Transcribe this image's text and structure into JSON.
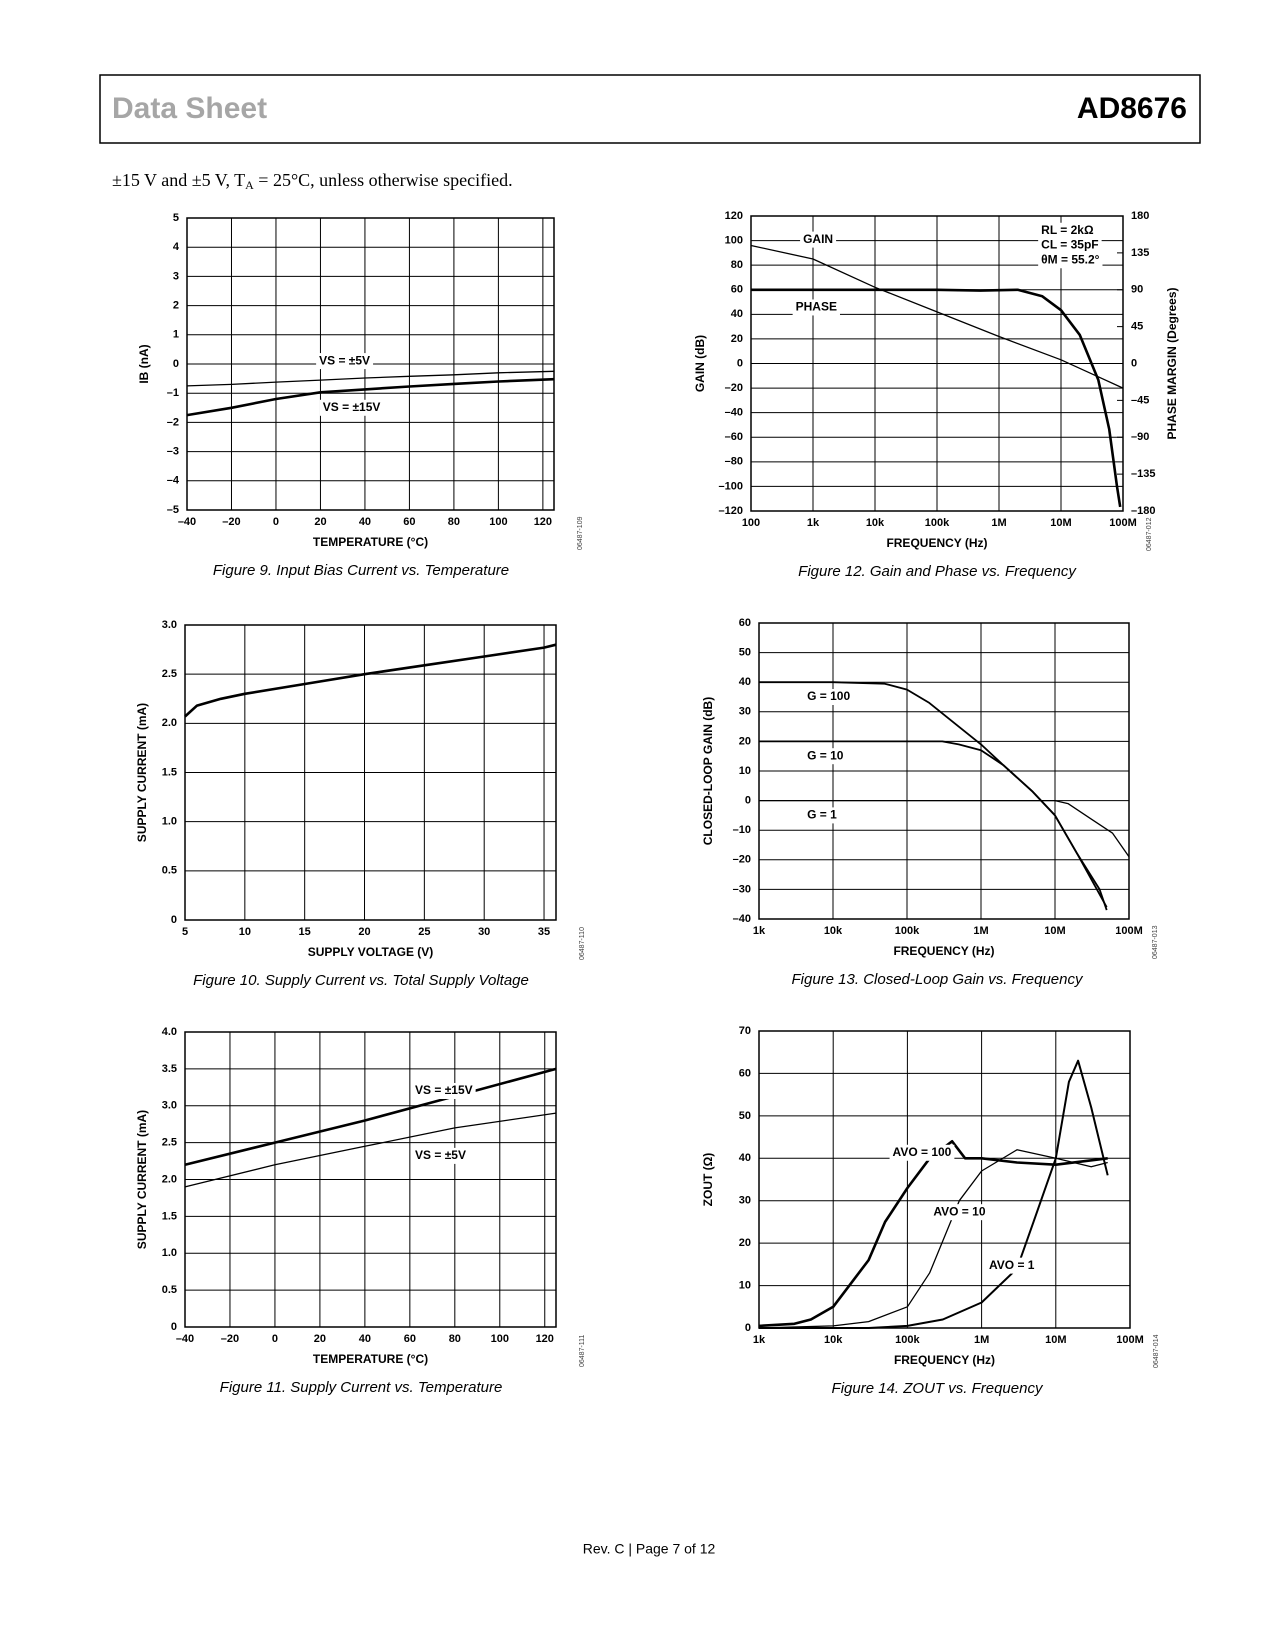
{
  "header": {
    "left": "Data Sheet",
    "right": "AD8676"
  },
  "conditions": [
    "±15 V and ±5 V, T",
    "A",
    " = 25°C, unless otherwise specified."
  ],
  "footer": "Rev. C | Page 7 of 12",
  "chart_data": [
    {
      "type": "line",
      "caption": "Figure 9. Input Bias Current vs. Temperature",
      "code": "06487-109",
      "xlabel": "TEMPERATURE (°C)",
      "ylabel": "IB (nA)",
      "xlim": [
        -40,
        125
      ],
      "ylim": [
        -5,
        5
      ],
      "xticks": [
        {
          "value": -40,
          "label": "–40"
        },
        {
          "value": -20,
          "label": "–20"
        },
        0,
        20,
        40,
        60,
        80,
        100,
        120
      ],
      "yticks": [
        {
          "value": -5,
          "label": "–5"
        },
        {
          "value": -4,
          "label": "–4"
        },
        {
          "value": -3,
          "label": "–3"
        },
        {
          "value": -2,
          "label": "–2"
        },
        {
          "value": -1,
          "label": "–1"
        },
        0,
        1,
        2,
        3,
        4,
        5
      ],
      "x": [
        -40,
        -20,
        0,
        20,
        40,
        60,
        80,
        100,
        125
      ],
      "series": [
        {
          "name": "VS = ±5V",
          "color": "#000000",
          "linewidth": 1.3,
          "values": [
            -0.75,
            -0.7,
            -0.62,
            -0.55,
            -0.48,
            -0.42,
            -0.37,
            -0.3,
            -0.25
          ]
        },
        {
          "name": "VS = ±15V",
          "color": "#000000",
          "linewidth": 2.6,
          "values": [
            -1.75,
            -1.5,
            -1.2,
            -0.97,
            -0.87,
            -0.77,
            -0.68,
            -0.6,
            -0.52
          ]
        }
      ],
      "grid": true
    },
    {
      "type": "line",
      "caption": "Figure 12. Gain and Phase vs. Frequency",
      "code": "06487-012",
      "xlabel": "FREQUENCY (Hz)",
      "ylabel": "GAIN (dB)",
      "y2label": "PHASE MARGIN (Degrees)",
      "xscale": "log",
      "xlim": [
        100,
        100000000
      ],
      "ylim": [
        -120,
        120
      ],
      "y2lim": [
        -180,
        180
      ],
      "xticks": [
        100,
        {
          "value": 1000,
          "label": "1k"
        },
        {
          "value": 10000,
          "label": "10k"
        },
        {
          "value": 100000,
          "label": "100k"
        },
        {
          "value": 1000000,
          "label": "1M"
        },
        {
          "value": 10000000,
          "label": "10M"
        },
        {
          "value": 100000000,
          "label": "100M"
        }
      ],
      "yticks": [
        {
          "value": -120,
          "label": "–120"
        },
        {
          "value": -100,
          "label": "–100"
        },
        {
          "value": -80,
          "label": "–80"
        },
        {
          "value": -60,
          "label": "–60"
        },
        {
          "value": -40,
          "label": "–40"
        },
        {
          "value": -20,
          "label": "–20"
        },
        0,
        20,
        40,
        60,
        80,
        100,
        120
      ],
      "y2ticks": [
        {
          "value": -180,
          "label": "–180"
        },
        {
          "value": -135,
          "label": "–135"
        },
        {
          "value": -90,
          "label": "–90"
        },
        {
          "value": -45,
          "label": "–45"
        },
        0,
        45,
        90,
        135,
        180
      ],
      "series": [
        {
          "name": "GAIN",
          "color": "#000000",
          "linewidth": 1.3,
          "x": [
            100,
            1000,
            10000,
            100000,
            1000000,
            10000000,
            30000000,
            100000000
          ],
          "values": [
            96,
            85,
            62,
            42,
            22,
            3,
            -8,
            -20
          ]
        },
        {
          "name": "PHASE",
          "color": "#000000",
          "linewidth": 2.6,
          "axis": "y2",
          "x": [
            100,
            1000,
            10000,
            100000,
            500000,
            2000000,
            5000000,
            10000000,
            20000000,
            40000000,
            60000000,
            80000000,
            90000000
          ],
          "values": [
            90,
            90,
            90,
            90,
            89,
            90,
            82,
            65,
            35,
            -20,
            -80,
            -150,
            -175
          ]
        }
      ],
      "annotations": [
        "RL = 2kΩ",
        "CL = 35pF",
        "θM = 55.2°"
      ],
      "grid": true
    },
    {
      "type": "line",
      "caption": "Figure 10. Supply Current vs. Total Supply Voltage",
      "code": "06487-110",
      "xlabel": "SUPPLY VOLTAGE (V)",
      "ylabel": "SUPPLY CURRENT (mA)",
      "xlim": [
        5,
        36
      ],
      "ylim": [
        0,
        3
      ],
      "xticks": [
        5,
        10,
        15,
        20,
        25,
        30,
        35
      ],
      "yticks": [
        0,
        0.5,
        {
          "value": 1,
          "label": "1.0"
        },
        1.5,
        {
          "value": 2,
          "label": "2.0"
        },
        2.5,
        {
          "value": 3,
          "label": "3.0"
        }
      ],
      "x": [
        5,
        6,
        8,
        10,
        15,
        20,
        25,
        30,
        35,
        36
      ],
      "series": [
        {
          "color": "#000000",
          "linewidth": 2.6,
          "values": [
            2.07,
            2.18,
            2.25,
            2.3,
            2.4,
            2.5,
            2.59,
            2.68,
            2.77,
            2.8
          ]
        }
      ],
      "grid": true
    },
    {
      "type": "line",
      "caption": "Figure 13. Closed-Loop Gain vs. Frequency",
      "code": "06487-013",
      "xlabel": "FREQUENCY (Hz)",
      "ylabel": "CLOSED-LOOP GAIN (dB)",
      "xscale": "log",
      "xlim": [
        1000,
        100000000
      ],
      "ylim": [
        -40,
        60
      ],
      "xticks": [
        {
          "value": 1000,
          "label": "1k"
        },
        {
          "value": 10000,
          "label": "10k"
        },
        {
          "value": 100000,
          "label": "100k"
        },
        {
          "value": 1000000,
          "label": "1M"
        },
        {
          "value": 10000000,
          "label": "10M"
        },
        {
          "value": 100000000,
          "label": "100M"
        }
      ],
      "yticks": [
        {
          "value": -40,
          "label": "–40"
        },
        {
          "value": -30,
          "label": "–30"
        },
        {
          "value": -20,
          "label": "–20"
        },
        {
          "value": -10,
          "label": "–10"
        },
        0,
        10,
        20,
        30,
        40,
        50,
        60
      ],
      "series": [
        {
          "name": "G = 100",
          "color": "#000000",
          "linewidth": 1.8,
          "x": [
            1000,
            10000,
            50000,
            100000,
            200000,
            500000,
            1000000,
            2000000,
            5000000,
            10000000,
            20000000,
            50000000
          ],
          "values": [
            40,
            40,
            39.5,
            37.5,
            33,
            25,
            19,
            12,
            3,
            -5,
            -18,
            -36
          ]
        },
        {
          "name": "G = 10",
          "color": "#000000",
          "linewidth": 1.8,
          "x": [
            1000,
            10000,
            100000,
            300000,
            500000,
            1000000,
            2000000,
            5000000,
            10000000,
            20000000,
            40000000,
            50000000
          ],
          "values": [
            20,
            20,
            20,
            20,
            19,
            17,
            12,
            3,
            -5,
            -18,
            -30,
            -37
          ]
        },
        {
          "name": "G = 1",
          "color": "#000000",
          "linewidth": 1.3,
          "x": [
            1000,
            100000,
            1000000,
            10000000,
            15000000,
            30000000,
            60000000,
            100000000
          ],
          "values": [
            0,
            0,
            0,
            0,
            -1,
            -6,
            -11,
            -19
          ]
        }
      ],
      "grid": true
    },
    {
      "type": "line",
      "caption": "Figure 11. Supply Current vs. Temperature",
      "code": "06487-111",
      "xlabel": "TEMPERATURE (°C)",
      "ylabel": "SUPPLY CURRENT (mA)",
      "xlim": [
        -40,
        125
      ],
      "ylim": [
        0,
        4
      ],
      "xticks": [
        {
          "value": -40,
          "label": "–40"
        },
        {
          "value": -20,
          "label": "–20"
        },
        0,
        20,
        40,
        60,
        80,
        100,
        120
      ],
      "yticks": [
        0,
        0.5,
        {
          "value": 1,
          "label": "1.0"
        },
        1.5,
        {
          "value": 2,
          "label": "2.0"
        },
        2.5,
        {
          "value": 3,
          "label": "3.0"
        },
        3.5,
        {
          "value": 4,
          "label": "4.0"
        }
      ],
      "x": [
        -40,
        0,
        40,
        80,
        125
      ],
      "series": [
        {
          "name": "VS = ±15V",
          "color": "#000000",
          "linewidth": 2.6,
          "values": [
            2.2,
            2.5,
            2.8,
            3.13,
            3.5
          ]
        },
        {
          "name": "VS = ±5V",
          "color": "#000000",
          "linewidth": 1.3,
          "values": [
            1.9,
            2.2,
            2.45,
            2.7,
            2.9
          ]
        }
      ],
      "grid": true
    },
    {
      "type": "line",
      "caption": "Figure 14. ZOUT vs. Frequency",
      "code": "06487-014",
      "xlabel": "FREQUENCY (Hz)",
      "ylabel": "ZOUT (Ω)",
      "xscale": "log",
      "xlim": [
        1000,
        100000000
      ],
      "ylim": [
        0,
        70
      ],
      "xticks": [
        {
          "value": 1000,
          "label": "1k"
        },
        {
          "value": 10000,
          "label": "10k"
        },
        {
          "value": 100000,
          "label": "100k"
        },
        {
          "value": 1000000,
          "label": "1M"
        },
        {
          "value": 10000000,
          "label": "10M"
        },
        {
          "value": 100000000,
          "label": "100M"
        }
      ],
      "yticks": [
        0,
        10,
        20,
        30,
        40,
        50,
        60,
        70
      ],
      "series": [
        {
          "name": "AVO = 100",
          "color": "#000000",
          "linewidth": 2.6,
          "x": [
            1000,
            3000,
            5000,
            10000,
            30000,
            50000,
            100000,
            200000,
            400000,
            600000,
            1000000,
            3000000,
            10000000,
            50000000
          ],
          "values": [
            0.5,
            1,
            2,
            5,
            16,
            25,
            33,
            40,
            44,
            40,
            40,
            39,
            38.5,
            40
          ]
        },
        {
          "name": "AVO = 10",
          "color": "#000000",
          "linewidth": 1.3,
          "x": [
            1000,
            10000,
            30000,
            100000,
            200000,
            500000,
            1000000,
            3000000,
            10000000,
            30000000,
            50000000
          ],
          "values": [
            0,
            0.5,
            1.5,
            5,
            13,
            30,
            37,
            42,
            40,
            38,
            39
          ]
        },
        {
          "name": "AVO = 1",
          "color": "#000000",
          "linewidth": 2,
          "x": [
            1000,
            30000,
            100000,
            300000,
            1000000,
            3000000,
            5000000,
            10000000,
            15000000,
            20000000,
            30000000,
            50000000
          ],
          "values": [
            0,
            0,
            0.5,
            2,
            6,
            14,
            25,
            40,
            58,
            63,
            52,
            36
          ]
        }
      ],
      "grid": true
    }
  ]
}
